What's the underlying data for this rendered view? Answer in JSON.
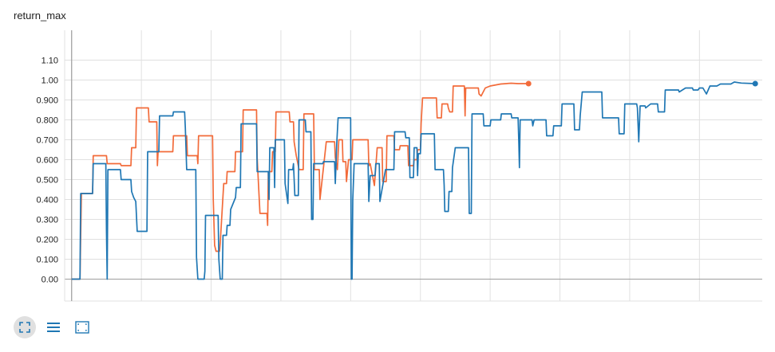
{
  "title": "return_max",
  "colors": {
    "orange": "#f26b3a",
    "blue": "#1f77b4",
    "grid": "#e0e0e0",
    "axis": "#9e9e9e"
  },
  "toolbar": {
    "icons": [
      "fit-domain-icon",
      "toggle-log-scale-icon",
      "zoom-selection-icon"
    ]
  },
  "chart_data": {
    "type": "line",
    "title": "return_max",
    "yticks": [
      "0.00",
      "0.100",
      "0.200",
      "0.300",
      "0.400",
      "0.500",
      "0.600",
      "0.700",
      "0.800",
      "0.900",
      "1.00",
      "1.10"
    ],
    "ylim": [
      -0.11,
      1.25
    ],
    "xlim": [
      -10,
      990
    ],
    "grid": true,
    "series": [
      {
        "color": "orange",
        "points": [
          [
            0,
            0
          ],
          [
            12,
            0
          ],
          [
            14,
            0.43
          ],
          [
            30,
            0.43
          ],
          [
            31,
            0.62
          ],
          [
            50,
            0.62
          ],
          [
            51,
            0.58
          ],
          [
            70,
            0.58
          ],
          [
            71,
            0.57
          ],
          [
            85,
            0.57
          ],
          [
            86,
            0.66
          ],
          [
            92,
            0.66
          ],
          [
            93,
            0.86
          ],
          [
            110,
            0.86
          ],
          [
            111,
            0.79
          ],
          [
            122,
            0.79
          ],
          [
            123,
            0.57
          ],
          [
            124,
            0.64
          ],
          [
            145,
            0.64
          ],
          [
            146,
            0.72
          ],
          [
            165,
            0.72
          ],
          [
            166,
            0.62
          ],
          [
            180,
            0.62
          ],
          [
            181,
            0.58
          ],
          [
            182,
            0.72
          ],
          [
            202,
            0.72
          ],
          [
            203,
            0.4
          ],
          [
            205,
            0.17
          ],
          [
            207,
            0.14
          ],
          [
            212,
            0.14
          ],
          [
            213,
            0.18
          ],
          [
            218,
            0.48
          ],
          [
            222,
            0.48
          ],
          [
            223,
            0.54
          ],
          [
            234,
            0.54
          ],
          [
            235,
            0.64
          ],
          [
            245,
            0.64
          ],
          [
            246,
            0.85
          ],
          [
            265,
            0.85
          ],
          [
            266,
            0.61
          ],
          [
            270,
            0.33
          ],
          [
            280,
            0.33
          ],
          [
            281,
            0.27
          ],
          [
            282,
            0.54
          ],
          [
            287,
            0.54
          ],
          [
            288,
            0.64
          ],
          [
            292,
            0.64
          ],
          [
            293,
            0.84
          ],
          [
            312,
            0.84
          ],
          [
            313,
            0.79
          ],
          [
            318,
            0.79
          ],
          [
            319,
            0.69
          ],
          [
            322,
            0.62
          ],
          [
            326,
            0.55
          ],
          [
            332,
            0.55
          ],
          [
            333,
            0.83
          ],
          [
            347,
            0.83
          ],
          [
            348,
            0.55
          ],
          [
            355,
            0.55
          ],
          [
            356,
            0.4
          ],
          [
            365,
            0.69
          ],
          [
            377,
            0.69
          ],
          [
            378,
            0.61
          ],
          [
            381,
            0.55
          ],
          [
            383,
            0.7
          ],
          [
            388,
            0.7
          ],
          [
            389,
            0.59
          ],
          [
            393,
            0.59
          ],
          [
            394,
            0.49
          ],
          [
            397,
            0.6
          ],
          [
            402,
            0.6
          ],
          [
            403,
            0.7
          ],
          [
            425,
            0.7
          ],
          [
            426,
            0.57
          ],
          [
            428,
            0.58
          ],
          [
            434,
            0.47
          ],
          [
            438,
            0.66
          ],
          [
            445,
            0.66
          ],
          [
            446,
            0.49
          ],
          [
            451,
            0.49
          ],
          [
            452,
            0.72
          ],
          [
            462,
            0.72
          ],
          [
            463,
            0.65
          ],
          [
            470,
            0.65
          ],
          [
            471,
            0.67
          ],
          [
            482,
            0.67
          ],
          [
            483,
            0.57
          ],
          [
            490,
            0.57
          ],
          [
            491,
            0.6
          ],
          [
            495,
            0.6
          ],
          [
            496,
            0.65
          ],
          [
            500,
            0.65
          ],
          [
            501,
            0.78
          ],
          [
            503,
            0.91
          ],
          [
            523,
            0.91
          ],
          [
            524,
            0.81
          ],
          [
            530,
            0.81
          ],
          [
            531,
            0.88
          ],
          [
            539,
            0.88
          ],
          [
            540,
            0.86
          ],
          [
            542,
            0.84
          ],
          [
            546,
            0.84
          ],
          [
            547,
            0.97
          ],
          [
            563,
            0.97
          ],
          [
            564,
            0.82
          ],
          [
            565,
            0.96
          ],
          [
            583,
            0.96
          ],
          [
            584,
            0.93
          ],
          [
            587,
            0.92
          ],
          [
            593,
            0.96
          ],
          [
            600,
            0.97
          ],
          [
            615,
            0.98
          ],
          [
            630,
            0.984
          ],
          [
            640,
            0.982
          ],
          [
            655,
            0.982
          ]
        ]
      },
      {
        "color": "blue",
        "points": [
          [
            0,
            0
          ],
          [
            12,
            0
          ],
          [
            13,
            0.43
          ],
          [
            30,
            0.43
          ],
          [
            31,
            0.58
          ],
          [
            49,
            0.58
          ],
          [
            50,
            0.24
          ],
          [
            51,
            0
          ],
          [
            52,
            0.55
          ],
          [
            70,
            0.55
          ],
          [
            71,
            0.5
          ],
          [
            85,
            0.5
          ],
          [
            86,
            0.44
          ],
          [
            89,
            0.41
          ],
          [
            92,
            0.39
          ],
          [
            94,
            0.24
          ],
          [
            108,
            0.24
          ],
          [
            109,
            0.64
          ],
          [
            125,
            0.64
          ],
          [
            126,
            0.82
          ],
          [
            145,
            0.82
          ],
          [
            146,
            0.84
          ],
          [
            162,
            0.84
          ],
          [
            163,
            0.76
          ],
          [
            165,
            0.55
          ],
          [
            178,
            0.55
          ],
          [
            179,
            0.11
          ],
          [
            181,
            0
          ],
          [
            190,
            0
          ],
          [
            191,
            0.04
          ],
          [
            192,
            0.32
          ],
          [
            210,
            0.32
          ],
          [
            211,
            0.1
          ],
          [
            213,
            0
          ],
          [
            216,
            0
          ],
          [
            217,
            0.22
          ],
          [
            222,
            0.22
          ],
          [
            223,
            0.27
          ],
          [
            227,
            0.27
          ],
          [
            228,
            0.35
          ],
          [
            235,
            0.41
          ],
          [
            236,
            0.46
          ],
          [
            242,
            0.46
          ],
          [
            243,
            0.78
          ],
          [
            265,
            0.78
          ],
          [
            266,
            0.54
          ],
          [
            282,
            0.54
          ],
          [
            283,
            0.4
          ],
          [
            284,
            0.66
          ],
          [
            290,
            0.66
          ],
          [
            291,
            0.46
          ],
          [
            292,
            0.7
          ],
          [
            305,
            0.7
          ],
          [
            306,
            0.48
          ],
          [
            310,
            0.38
          ],
          [
            311,
            0.55
          ],
          [
            317,
            0.55
          ],
          [
            318,
            0.58
          ],
          [
            320,
            0.42
          ],
          [
            325,
            0.42
          ],
          [
            326,
            0.8
          ],
          [
            335,
            0.8
          ],
          [
            336,
            0.74
          ],
          [
            343,
            0.74
          ],
          [
            344,
            0.3
          ],
          [
            346,
            0.3
          ],
          [
            347,
            0.58
          ],
          [
            360,
            0.58
          ],
          [
            361,
            0.59
          ],
          [
            377,
            0.59
          ],
          [
            378,
            0.48
          ],
          [
            380,
            0.68
          ],
          [
            382,
            0.81
          ],
          [
            400,
            0.81
          ],
          [
            401,
            0
          ],
          [
            402,
            0
          ],
          [
            403,
            0.4
          ],
          [
            405,
            0.58
          ],
          [
            425,
            0.58
          ],
          [
            426,
            0.39
          ],
          [
            428,
            0.52
          ],
          [
            435,
            0.52
          ],
          [
            436,
            0.58
          ],
          [
            441,
            0.58
          ],
          [
            442,
            0.39
          ],
          [
            450,
            0.55
          ],
          [
            462,
            0.55
          ],
          [
            463,
            0.74
          ],
          [
            478,
            0.74
          ],
          [
            479,
            0.71
          ],
          [
            484,
            0.71
          ],
          [
            485,
            0.51
          ],
          [
            490,
            0.51
          ],
          [
            491,
            0.66
          ],
          [
            495,
            0.66
          ],
          [
            496,
            0.52
          ],
          [
            497,
            0.63
          ],
          [
            500,
            0.63
          ],
          [
            501,
            0.73
          ],
          [
            520,
            0.73
          ],
          [
            521,
            0.55
          ],
          [
            533,
            0.55
          ],
          [
            534,
            0.47
          ],
          [
            535,
            0.34
          ],
          [
            540,
            0.34
          ],
          [
            541,
            0.44
          ],
          [
            545,
            0.44
          ],
          [
            546,
            0.56
          ],
          [
            550,
            0.66
          ],
          [
            569,
            0.66
          ],
          [
            570,
            0.33
          ],
          [
            573,
            0.33
          ],
          [
            574,
            0.83
          ],
          [
            590,
            0.83
          ],
          [
            591,
            0.77
          ],
          [
            600,
            0.77
          ],
          [
            601,
            0.8
          ],
          [
            615,
            0.8
          ],
          [
            616,
            0.83
          ],
          [
            630,
            0.83
          ],
          [
            631,
            0.81
          ],
          [
            640,
            0.81
          ],
          [
            641,
            0.69
          ],
          [
            642,
            0.56
          ],
          [
            643,
            0.8
          ],
          [
            660,
            0.8
          ],
          [
            661,
            0.77
          ],
          [
            663,
            0.8
          ],
          [
            680,
            0.8
          ],
          [
            681,
            0.72
          ],
          [
            690,
            0.72
          ],
          [
            691,
            0.77
          ],
          [
            702,
            0.77
          ],
          [
            703,
            0.88
          ],
          [
            720,
            0.88
          ],
          [
            721,
            0.75
          ],
          [
            728,
            0.75
          ],
          [
            729,
            0.82
          ],
          [
            732,
            0.94
          ],
          [
            760,
            0.94
          ],
          [
            761,
            0.81
          ],
          [
            784,
            0.81
          ],
          [
            785,
            0.73
          ],
          [
            792,
            0.73
          ],
          [
            793,
            0.88
          ],
          [
            810,
            0.88
          ],
          [
            811,
            0.86
          ],
          [
            813,
            0.69
          ],
          [
            815,
            0.87
          ],
          [
            822,
            0.87
          ],
          [
            823,
            0.86
          ],
          [
            830,
            0.88
          ],
          [
            840,
            0.88
          ],
          [
            841,
            0.84
          ],
          [
            850,
            0.84
          ],
          [
            851,
            0.95
          ],
          [
            870,
            0.95
          ],
          [
            871,
            0.94
          ],
          [
            880,
            0.96
          ],
          [
            890,
            0.96
          ],
          [
            891,
            0.95
          ],
          [
            898,
            0.95
          ],
          [
            900,
            0.96
          ],
          [
            905,
            0.96
          ],
          [
            910,
            0.93
          ],
          [
            915,
            0.97
          ],
          [
            925,
            0.97
          ],
          [
            930,
            0.98
          ],
          [
            945,
            0.98
          ],
          [
            950,
            0.99
          ],
          [
            960,
            0.985
          ],
          [
            980,
            0.982
          ]
        ]
      }
    ]
  }
}
